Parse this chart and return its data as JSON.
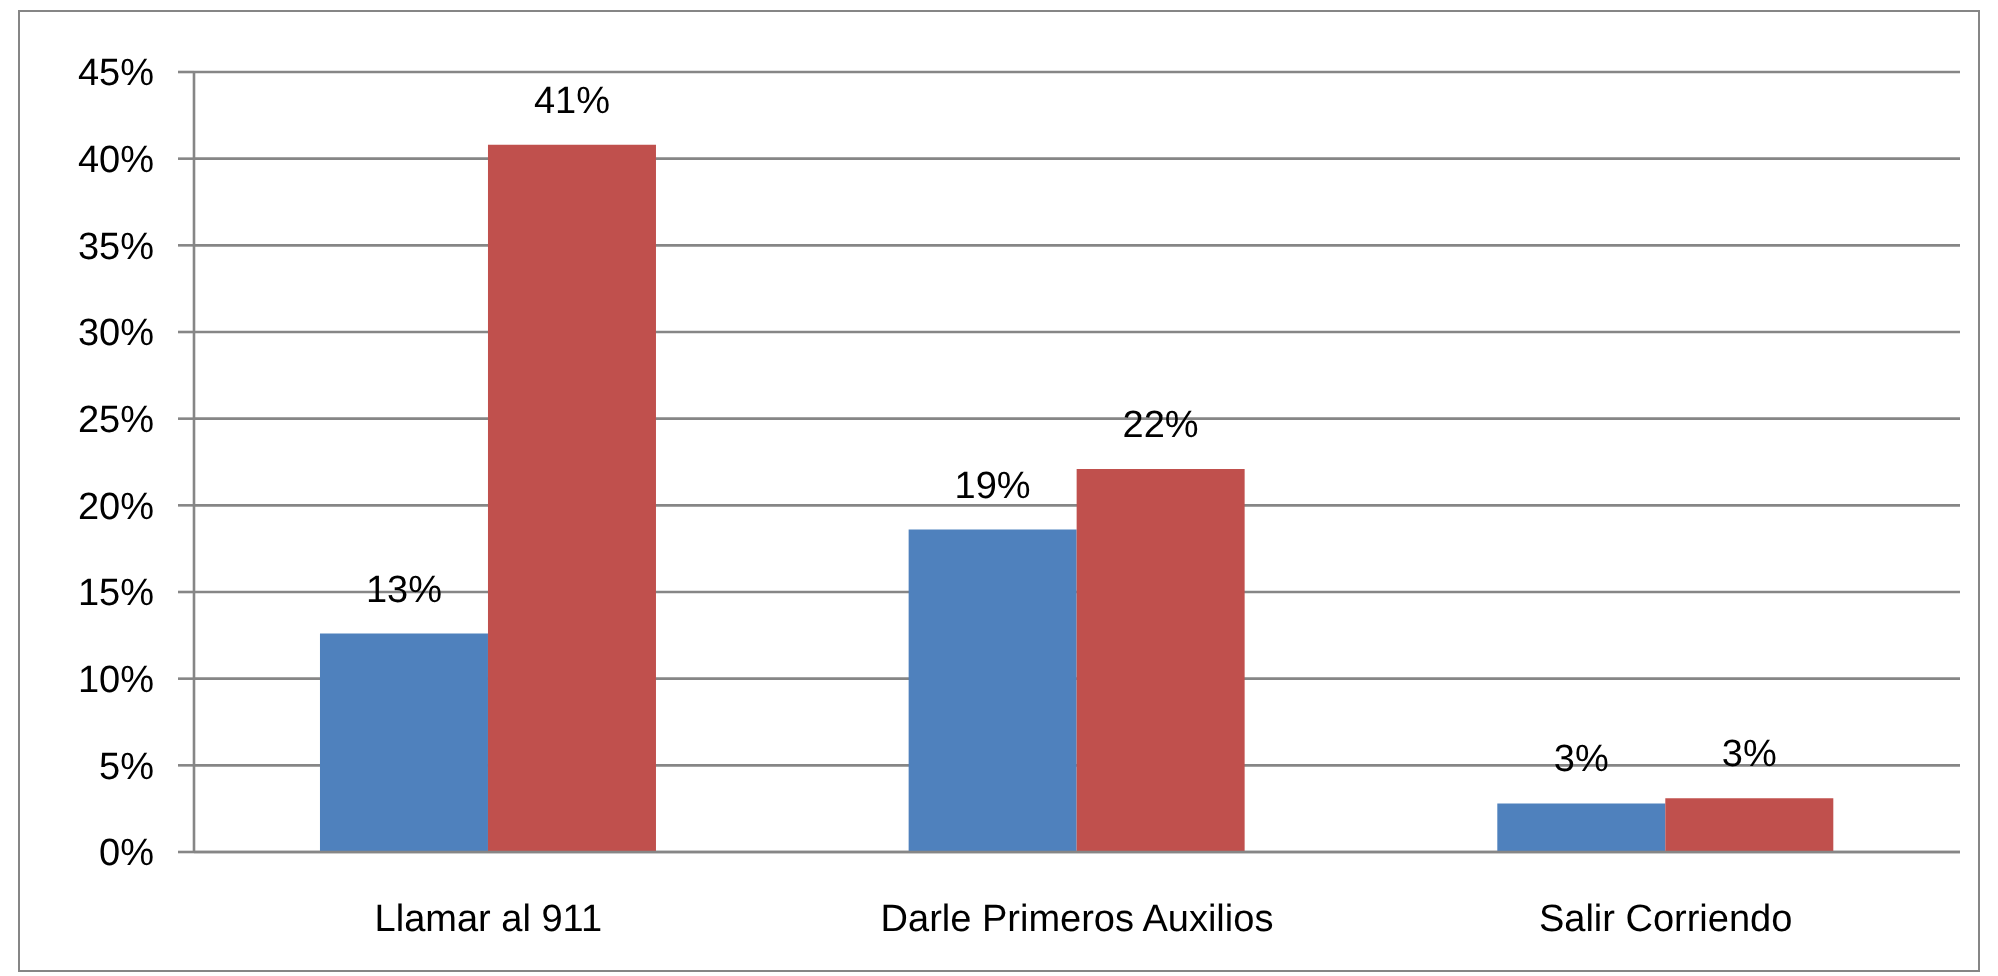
{
  "chart_data": {
    "type": "bar",
    "categories": [
      "Llamar al 911",
      "Darle Primeros Auxilios",
      "Salir Corriendo"
    ],
    "series": [
      {
        "color": "#4f81bd",
        "values": [
          12.6,
          18.6,
          2.8
        ],
        "value_labels": [
          "13%",
          "19%",
          "3%"
        ]
      },
      {
        "color": "#c0504d",
        "values": [
          40.8,
          22.1,
          3.1
        ],
        "value_labels": [
          "41%",
          "22%",
          "3%"
        ]
      }
    ],
    "ylim": [
      0,
      45
    ],
    "yticks": [
      {
        "value": 0,
        "label": "0%"
      },
      {
        "value": 5,
        "label": "5%"
      },
      {
        "value": 10,
        "label": "10%"
      },
      {
        "value": 15,
        "label": "15%"
      },
      {
        "value": 20,
        "label": "20%"
      },
      {
        "value": 25,
        "label": "25%"
      },
      {
        "value": 30,
        "label": "30%"
      },
      {
        "value": 35,
        "label": "35%"
      },
      {
        "value": 40,
        "label": "40%"
      },
      {
        "value": 45,
        "label": "45%"
      }
    ],
    "grid": "y"
  }
}
